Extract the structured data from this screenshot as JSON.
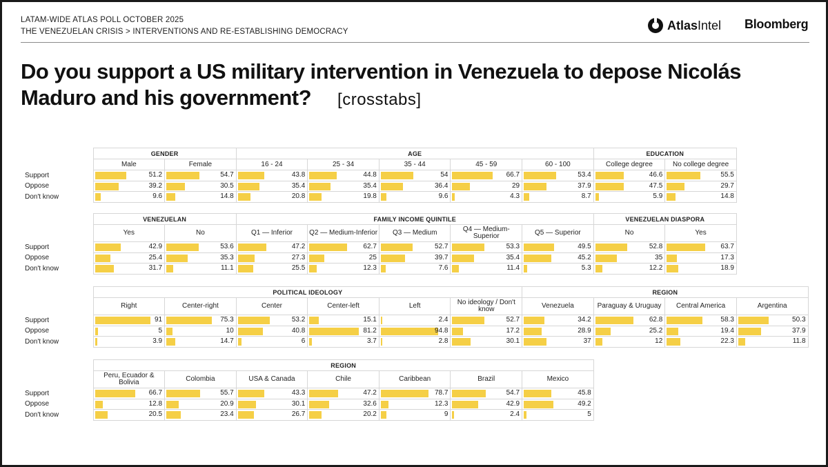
{
  "header": {
    "line1": "LATAM-WIDE ATLAS POLL OCTOBER 2025",
    "line2": "THE VENEZUELAN CRISIS > INTERVENTIONS AND RE-ESTABLISHING DEMOCRACY",
    "logo_atlas_bold": "Atlas",
    "logo_atlas_thin": "Intel",
    "logo_bloomberg": "Bloomberg"
  },
  "title": {
    "question": "Do you support a US military intervention in Venezuela to depose Nicolás Maduro and his government?",
    "suffix": "[crosstabs]"
  },
  "colors": {
    "bar": "#f5cf46",
    "border": "#d6d6d6"
  },
  "chart_data": {
    "type": "table",
    "title": "Do you support a US military intervention in Venezuela to depose Nicolás Maduro and his government?",
    "row_labels": [
      "Support",
      "Oppose",
      "Don't know"
    ],
    "scale_max": 100,
    "tables": [
      {
        "groups": [
          {
            "name": "GENDER",
            "columns": [
              {
                "label": "Male",
                "values": [
                  51.2,
                  39.2,
                  9.6
                ]
              },
              {
                "label": "Female",
                "values": [
                  54.7,
                  30.5,
                  14.8
                ]
              }
            ]
          },
          {
            "name": "AGE",
            "columns": [
              {
                "label": "16 - 24",
                "values": [
                  43.8,
                  35.4,
                  20.8
                ]
              },
              {
                "label": "25 - 34",
                "values": [
                  44.8,
                  35.4,
                  19.8
                ]
              },
              {
                "label": "35 - 44",
                "values": [
                  54,
                  36.4,
                  9.6
                ]
              },
              {
                "label": "45 - 59",
                "values": [
                  66.7,
                  29,
                  4.3
                ]
              },
              {
                "label": "60 - 100",
                "values": [
                  53.4,
                  37.9,
                  8.7
                ]
              }
            ]
          },
          {
            "name": "EDUCATION",
            "columns": [
              {
                "label": "College degree",
                "values": [
                  46.6,
                  47.5,
                  5.9
                ]
              },
              {
                "label": "No college degree",
                "values": [
                  55.5,
                  29.7,
                  14.8
                ]
              }
            ]
          }
        ]
      },
      {
        "groups": [
          {
            "name": "VENEZUELAN",
            "columns": [
              {
                "label": "Yes",
                "values": [
                  42.9,
                  25.4,
                  31.7
                ]
              },
              {
                "label": "No",
                "values": [
                  53.6,
                  35.3,
                  11.1
                ]
              }
            ]
          },
          {
            "name": "FAMILY INCOME QUINTILE",
            "columns": [
              {
                "label": "Q1 — Inferior",
                "values": [
                  47.2,
                  27.3,
                  25.5
                ]
              },
              {
                "label": "Q2 — Medium-Inferior",
                "values": [
                  62.7,
                  25,
                  12.3
                ]
              },
              {
                "label": "Q3 — Medium",
                "values": [
                  52.7,
                  39.7,
                  7.6
                ]
              },
              {
                "label": "Q4 — Medium-Superior",
                "values": [
                  53.3,
                  35.4,
                  11.4
                ]
              },
              {
                "label": "Q5 — Superior",
                "values": [
                  49.5,
                  45.2,
                  5.3
                ]
              }
            ]
          },
          {
            "name": "VENEZUELAN DIASPORA",
            "columns": [
              {
                "label": "No",
                "values": [
                  52.8,
                  35,
                  12.2
                ]
              },
              {
                "label": "Yes",
                "values": [
                  63.7,
                  17.3,
                  18.9
                ]
              }
            ]
          }
        ]
      },
      {
        "groups": [
          {
            "name": "POLITICAL IDEOLOGY",
            "columns": [
              {
                "label": "Right",
                "values": [
                  91,
                  5,
                  3.9
                ]
              },
              {
                "label": "Center-right",
                "values": [
                  75.3,
                  10,
                  14.7
                ]
              },
              {
                "label": "Center",
                "values": [
                  53.2,
                  40.8,
                  6
                ]
              },
              {
                "label": "Center-left",
                "values": [
                  15.1,
                  81.2,
                  3.7
                ]
              },
              {
                "label": "Left",
                "values": [
                  2.4,
                  94.8,
                  2.8
                ]
              },
              {
                "label": "No ideology / Don't know",
                "values": [
                  52.7,
                  17.2,
                  30.1
                ]
              }
            ]
          },
          {
            "name": "REGION",
            "columns": [
              {
                "label": "Venezuela",
                "values": [
                  34.2,
                  28.9,
                  37
                ]
              },
              {
                "label": "Paraguay & Uruguay",
                "values": [
                  62.8,
                  25.2,
                  12
                ]
              },
              {
                "label": "Central America",
                "values": [
                  58.3,
                  19.4,
                  22.3
                ]
              },
              {
                "label": "Argentina",
                "values": [
                  50.3,
                  37.9,
                  11.8
                ]
              }
            ]
          }
        ]
      },
      {
        "groups": [
          {
            "name": "REGION",
            "columns": [
              {
                "label": "Peru, Ecuador & Bolivia",
                "values": [
                  66.7,
                  12.8,
                  20.5
                ]
              },
              {
                "label": "Colombia",
                "values": [
                  55.7,
                  20.9,
                  23.4
                ]
              },
              {
                "label": "USA & Canada",
                "values": [
                  43.3,
                  30.1,
                  26.7
                ]
              },
              {
                "label": "Chile",
                "values": [
                  47.2,
                  32.6,
                  20.2
                ]
              },
              {
                "label": "Caribbean",
                "values": [
                  78.7,
                  12.3,
                  9
                ]
              },
              {
                "label": "Brazil",
                "values": [
                  54.7,
                  42.9,
                  2.4
                ]
              },
              {
                "label": "Mexico",
                "values": [
                  45.8,
                  49.2,
                  5
                ]
              }
            ]
          }
        ]
      }
    ]
  }
}
